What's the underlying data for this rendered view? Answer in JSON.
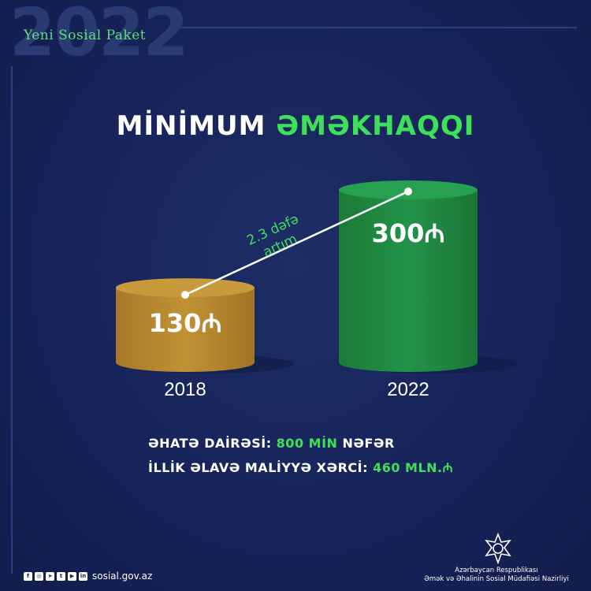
{
  "header": {
    "bg_year": "2022",
    "brand": "Yeni Sosial Paket"
  },
  "title": {
    "part1": "MİNİMUM",
    "part2": "ƏMƏKHAQQI"
  },
  "chart_data": {
    "type": "bar",
    "categories": [
      "2018",
      "2022"
    ],
    "values": [
      130,
      300
    ],
    "value_labels": [
      "130₼",
      "300₼"
    ],
    "colors": [
      "#b8862c",
      "#1f8a3d"
    ],
    "annotation": "2.3 dəfə artım"
  },
  "annotation": {
    "line1": "2.3 dəfə",
    "line2": "artım"
  },
  "info": {
    "coverage_label": "ƏHATƏ DAİRƏSİ:",
    "coverage_value": "800 MİN",
    "coverage_unit": "NƏFƏR",
    "cost_label": "İLLİK ƏLAVƏ MALİYYƏ XƏRCİ:",
    "cost_value": "460 MLN.₼"
  },
  "footer": {
    "social_icons": [
      "facebook-icon",
      "instagram-icon",
      "telegram-icon",
      "twitter-icon",
      "youtube-icon",
      "linkedin-icon"
    ],
    "website": "sosial.gov.az",
    "ministry_line1": "Azərbaycan Respublikası",
    "ministry_line2": "Əmək və Əhalinin Sosial Müdafiəsi Nazirliyi"
  },
  "colors": {
    "background": "#17245a",
    "accent_green": "#3ee05a",
    "gold": "#b8862c",
    "green": "#1f8a3d"
  }
}
